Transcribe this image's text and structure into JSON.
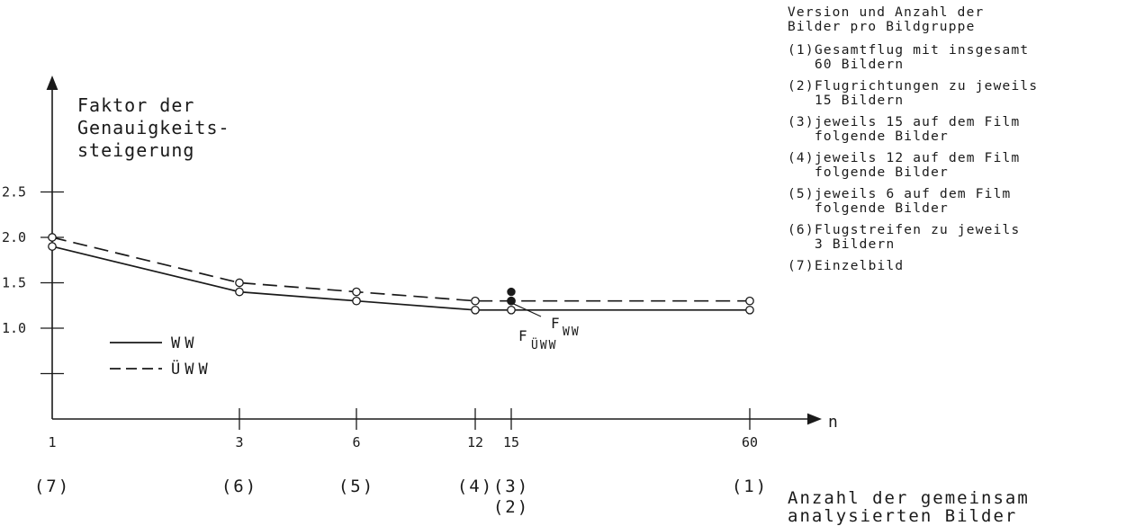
{
  "chart_data": {
    "type": "line",
    "ylabel": "Faktor der\nGenauigkeits-\nsteigerung",
    "xlabel": "Anzahl der gemeinsam\nanalysierten Bilder",
    "x_axis_symbol": "n",
    "x_ticks": [
      1,
      3,
      6,
      12,
      15,
      60
    ],
    "group_labels": [
      {
        "x": 1,
        "label": "(7)"
      },
      {
        "x": 3,
        "label": "(6)"
      },
      {
        "x": 6,
        "label": "(5)"
      },
      {
        "x": 12,
        "label": "(4)"
      },
      {
        "x": 15,
        "label": "(3)\n(2)"
      },
      {
        "x": 60,
        "label": "(1)"
      }
    ],
    "y_ticks": [
      1.0,
      1.5,
      2.0,
      2.5
    ],
    "y_tick_labels": [
      "1.0",
      "1.5",
      "2.0",
      "2.5"
    ],
    "ylim": [
      0,
      3
    ],
    "series": [
      {
        "name": "WW",
        "line_style": "solid",
        "x": [
          1,
          3,
          6,
          12,
          15,
          60
        ],
        "values": [
          1.9,
          1.4,
          1.3,
          1.2,
          1.2,
          1.2
        ]
      },
      {
        "name": "ÜWW",
        "line_style": "dashed",
        "x": [
          1,
          3,
          6,
          12,
          15,
          60
        ],
        "values": [
          2.0,
          1.5,
          1.4,
          1.3,
          1.3,
          1.3
        ]
      }
    ],
    "legend_entries": [
      {
        "label": "WW",
        "style": "solid"
      },
      {
        "label": "ÜWW",
        "style": "dashed"
      }
    ],
    "extra_points": [
      {
        "x": 15,
        "y": 1.4,
        "label_main": "F",
        "label_sub": "ÜWW",
        "filled": true
      },
      {
        "x": 15,
        "y": 1.3,
        "label_main": "F",
        "label_sub": "WW",
        "filled": true
      }
    ],
    "grid": false,
    "colors": {
      "ink": "#1a1a1a",
      "background": "#ffffff"
    }
  },
  "legend_panel": {
    "title": "Version und Anzahl der\nBilder pro Bildgruppe",
    "items": [
      {
        "num": "(1)",
        "text": "Gesamtflug mit insgesamt\n60 Bildern"
      },
      {
        "num": "(2)",
        "text": "Flugrichtungen zu jeweils\n15 Bildern"
      },
      {
        "num": "(3)",
        "text": "jeweils 15 auf dem Film\nfolgende Bilder"
      },
      {
        "num": "(4)",
        "text": "jeweils 12 auf dem Film\nfolgende Bilder"
      },
      {
        "num": "(5)",
        "text": "jeweils  6 auf dem Film\nfolgende Bilder"
      },
      {
        "num": "(6)",
        "text": "Flugstreifen zu jeweils\n3 Bildern"
      },
      {
        "num": "(7)",
        "text": "Einzelbild"
      }
    ]
  }
}
